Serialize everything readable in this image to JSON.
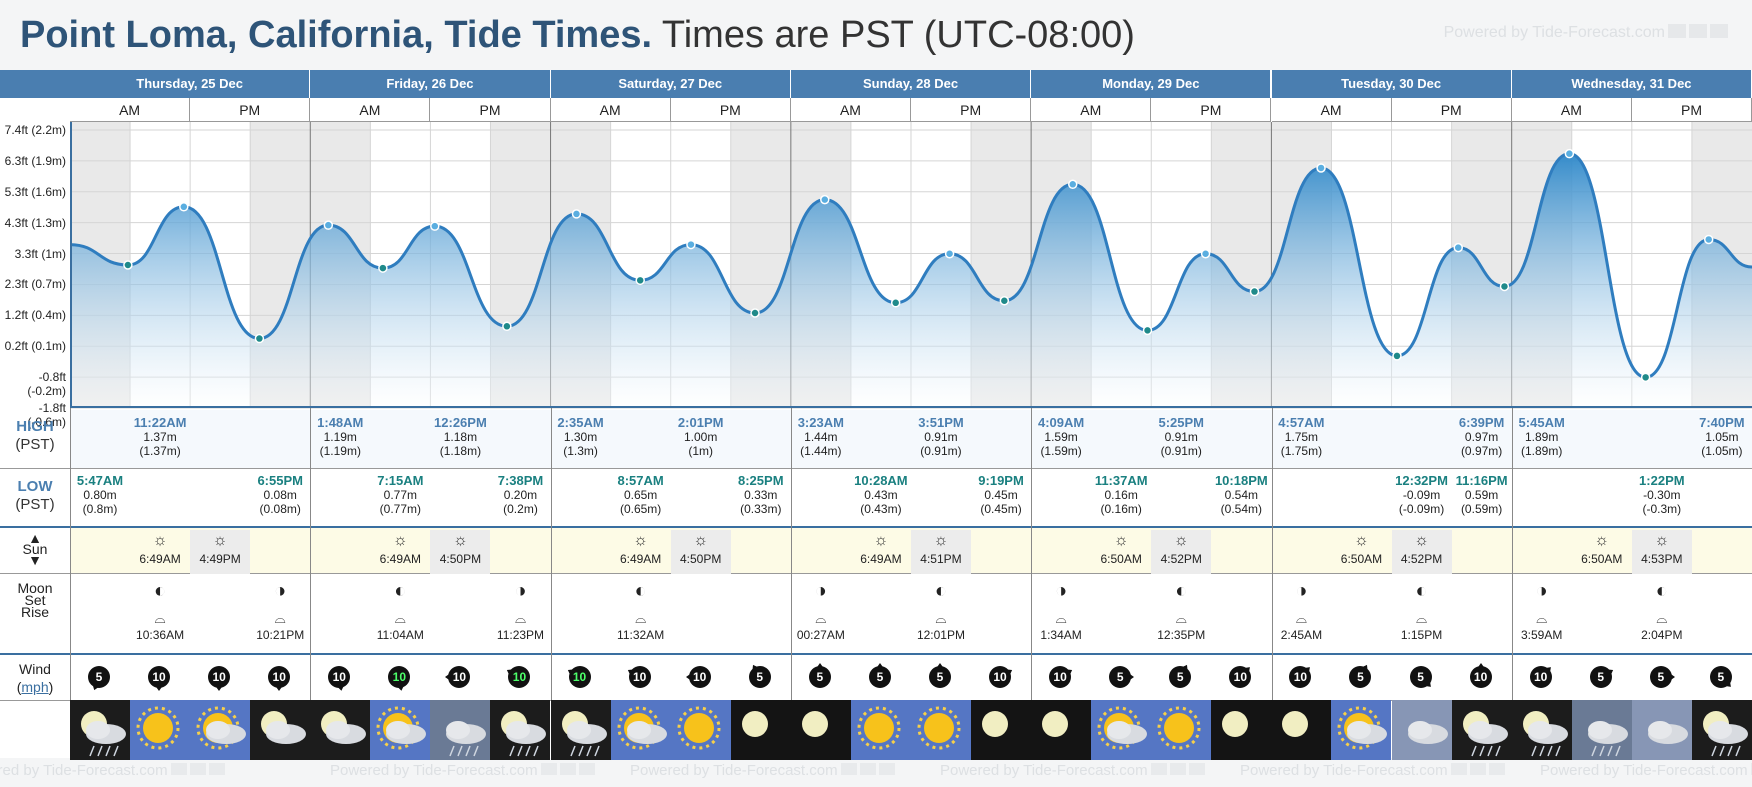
{
  "title": {
    "bold": "Point Loma, California, Tide Times.",
    "normal": "Times are PST (UTC-08:00)"
  },
  "powered_by": "Powered by Tide-Forecast.com",
  "days": [
    {
      "label": "Thursday, 25 Dec"
    },
    {
      "label": "Friday, 26 Dec"
    },
    {
      "label": "Saturday, 27 Dec"
    },
    {
      "label": "Sunday, 28 Dec"
    },
    {
      "label": "Monday, 29 Dec"
    },
    {
      "label": "Tuesday, 30 Dec"
    },
    {
      "label": "Wednesday, 31 Dec"
    }
  ],
  "ampm": {
    "am": "AM",
    "pm": "PM"
  },
  "yaxis_ticks": [
    "7.4ft (2.2m)",
    "6.3ft (1.9m)",
    "5.3ft (1.6m)",
    "4.3ft (1.3m)",
    "3.3ft (1m)",
    "2.3ft (0.7m)",
    "1.2ft (0.4m)",
    "0.2ft (0.1m)",
    "-0.8ft (-0.2m)",
    "-1.8ft (-0.6m)"
  ],
  "row_labels": {
    "high": "HIGH",
    "high_sub": "(PST)",
    "low": "LOW",
    "low_sub": "(PST)",
    "sun": "Sun",
    "moon": "Moon",
    "set": "Set",
    "rise": "Rise",
    "wind": "Wind",
    "mph": "mph"
  },
  "chart_data": {
    "type": "area",
    "title": "",
    "xlabel": "",
    "ylabel": "",
    "ylim": [
      -0.6,
      2.2
    ],
    "unit": "m",
    "points": [
      {
        "day": 0,
        "time": "5:47AM",
        "type": "low",
        "m": 0.8,
        "m_round": "0.8m",
        "label": "0.80m"
      },
      {
        "day": 0,
        "time": "11:22AM",
        "type": "high",
        "m": 1.37,
        "m_round": "1.37m",
        "label": "1.37m"
      },
      {
        "day": 0,
        "time": "6:55PM",
        "type": "low",
        "m": 0.08,
        "m_round": "0.08m",
        "label": "0.08m"
      },
      {
        "day": 1,
        "time": "1:48AM",
        "type": "high",
        "m": 1.19,
        "m_round": "1.19m",
        "label": "1.19m"
      },
      {
        "day": 1,
        "time": "7:15AM",
        "type": "low",
        "m": 0.77,
        "m_round": "0.77m",
        "label": "0.77m"
      },
      {
        "day": 1,
        "time": "12:26PM",
        "type": "high",
        "m": 1.18,
        "m_round": "1.18m",
        "label": "1.18m"
      },
      {
        "day": 1,
        "time": "7:38PM",
        "type": "low",
        "m": 0.2,
        "m_round": "0.2m",
        "label": "0.20m"
      },
      {
        "day": 2,
        "time": "2:35AM",
        "type": "high",
        "m": 1.3,
        "m_round": "1.3m",
        "label": "1.30m"
      },
      {
        "day": 2,
        "time": "8:57AM",
        "type": "low",
        "m": 0.65,
        "m_round": "0.65m",
        "label": "0.65m"
      },
      {
        "day": 2,
        "time": "2:01PM",
        "type": "high",
        "m": 1.0,
        "m_round": "1m",
        "label": "1.00m"
      },
      {
        "day": 2,
        "time": "8:25PM",
        "type": "low",
        "m": 0.33,
        "m_round": "0.33m",
        "label": "0.33m"
      },
      {
        "day": 3,
        "time": "3:23AM",
        "type": "high",
        "m": 1.44,
        "m_round": "1.44m",
        "label": "1.44m"
      },
      {
        "day": 3,
        "time": "10:28AM",
        "type": "low",
        "m": 0.43,
        "m_round": "0.43m",
        "label": "0.43m"
      },
      {
        "day": 3,
        "time": "3:51PM",
        "type": "high",
        "m": 0.91,
        "m_round": "0.91m",
        "label": "0.91m"
      },
      {
        "day": 3,
        "time": "9:19PM",
        "type": "low",
        "m": 0.45,
        "m_round": "0.45m",
        "label": "0.45m"
      },
      {
        "day": 4,
        "time": "4:09AM",
        "type": "high",
        "m": 1.59,
        "m_round": "1.59m",
        "label": "1.59m"
      },
      {
        "day": 4,
        "time": "11:37AM",
        "type": "low",
        "m": 0.16,
        "m_round": "0.16m",
        "label": "0.16m"
      },
      {
        "day": 4,
        "time": "5:25PM",
        "type": "high",
        "m": 0.91,
        "m_round": "0.91m",
        "label": "0.91m"
      },
      {
        "day": 4,
        "time": "10:18PM",
        "type": "low",
        "m": 0.54,
        "m_round": "0.54m",
        "label": "0.54m"
      },
      {
        "day": 5,
        "time": "4:57AM",
        "type": "high",
        "m": 1.75,
        "m_round": "1.75m",
        "label": "1.75m"
      },
      {
        "day": 5,
        "time": "12:32PM",
        "type": "low",
        "m": -0.09,
        "m_round": "-0.09m",
        "label": "-0.09m"
      },
      {
        "day": 5,
        "time": "6:39PM",
        "type": "high",
        "m": 0.97,
        "m_round": "0.97m",
        "label": "0.97m"
      },
      {
        "day": 5,
        "time": "11:16PM",
        "type": "low",
        "m": 0.59,
        "m_round": "0.59m",
        "label": "0.59m"
      },
      {
        "day": 6,
        "time": "5:45AM",
        "type": "high",
        "m": 1.89,
        "m_round": "1.89m",
        "label": "1.89m"
      },
      {
        "day": 6,
        "time": "1:22PM",
        "type": "low",
        "m": -0.3,
        "m_round": "-0.3m",
        "label": "-0.30m"
      },
      {
        "day": 6,
        "time": "7:40PM",
        "type": "high",
        "m": 1.05,
        "m_round": "1.05m",
        "label": "1.05m"
      }
    ]
  },
  "sun": [
    {
      "day": 0,
      "rise": "6:49AM",
      "set": "4:49PM"
    },
    {
      "day": 1,
      "rise": "6:49AM",
      "set": "4:50PM"
    },
    {
      "day": 2,
      "rise": "6:49AM",
      "set": "4:50PM"
    },
    {
      "day": 3,
      "rise": "6:49AM",
      "set": "4:51PM"
    },
    {
      "day": 4,
      "rise": "6:50AM",
      "set": "4:52PM"
    },
    {
      "day": 5,
      "rise": "6:50AM",
      "set": "4:52PM"
    },
    {
      "day": 6,
      "rise": "6:50AM",
      "set": "4:53PM"
    }
  ],
  "moon": [
    {
      "day": 0,
      "time": "10:36AM",
      "kind": "rise",
      "pm": false
    },
    {
      "day": 0,
      "time": "10:21PM",
      "kind": "set",
      "pm": true
    },
    {
      "day": 1,
      "time": "11:04AM",
      "kind": "rise",
      "pm": false
    },
    {
      "day": 1,
      "time": "11:23PM",
      "kind": "set",
      "pm": true
    },
    {
      "day": 2,
      "time": "11:32AM",
      "kind": "rise",
      "pm": false
    },
    {
      "day": 3,
      "time": "00:27AM",
      "kind": "set",
      "pm": false
    },
    {
      "day": 3,
      "time": "12:01PM",
      "kind": "rise",
      "pm": true
    },
    {
      "day": 4,
      "time": "1:34AM",
      "kind": "set",
      "pm": false
    },
    {
      "day": 4,
      "time": "12:35PM",
      "kind": "rise",
      "pm": true
    },
    {
      "day": 5,
      "time": "2:45AM",
      "kind": "set",
      "pm": false
    },
    {
      "day": 5,
      "time": "1:15PM",
      "kind": "rise",
      "pm": true
    },
    {
      "day": 6,
      "time": "3:59AM",
      "kind": "set",
      "pm": false
    },
    {
      "day": 6,
      "time": "2:04PM",
      "kind": "rise",
      "pm": true
    }
  ],
  "wind": [
    {
      "speed": "5",
      "dir": 200,
      "green": false
    },
    {
      "speed": "10",
      "dir": 180,
      "green": false
    },
    {
      "speed": "10",
      "dir": 180,
      "green": false
    },
    {
      "speed": "10",
      "dir": 180,
      "green": false
    },
    {
      "speed": "10",
      "dir": 170,
      "green": false
    },
    {
      "speed": "10",
      "dir": 170,
      "green": true
    },
    {
      "speed": "10",
      "dir": 270,
      "green": false
    },
    {
      "speed": "10",
      "dir": 300,
      "green": true
    },
    {
      "speed": "10",
      "dir": 300,
      "green": true
    },
    {
      "speed": "10",
      "dir": 300,
      "green": false
    },
    {
      "speed": "10",
      "dir": 270,
      "green": false
    },
    {
      "speed": "5",
      "dir": 330,
      "green": false
    },
    {
      "speed": "5",
      "dir": 0,
      "green": false
    },
    {
      "speed": "5",
      "dir": 0,
      "green": false
    },
    {
      "speed": "5",
      "dir": 0,
      "green": false
    },
    {
      "speed": "10",
      "dir": 60,
      "green": false
    },
    {
      "speed": "10",
      "dir": 60,
      "green": false
    },
    {
      "speed": "5",
      "dir": 90,
      "green": false
    },
    {
      "speed": "5",
      "dir": 30,
      "green": false
    },
    {
      "speed": "10",
      "dir": 45,
      "green": false
    },
    {
      "speed": "10",
      "dir": 45,
      "green": false
    },
    {
      "speed": "5",
      "dir": 30,
      "green": false
    },
    {
      "speed": "5",
      "dir": 135,
      "green": false
    },
    {
      "speed": "10",
      "dir": 0,
      "green": false
    },
    {
      "speed": "10",
      "dir": 45,
      "green": false
    },
    {
      "speed": "5",
      "dir": 60,
      "green": false
    },
    {
      "speed": "5",
      "dir": 90,
      "green": false
    },
    {
      "speed": "5",
      "dir": 135,
      "green": false
    }
  ],
  "weather": [
    "night-rain",
    "sunny",
    "partly-cloudy",
    "night-cloudy",
    "night-cloudy",
    "partly-cloudy",
    "rain",
    "night-rain",
    "night-rain",
    "partly-cloudy",
    "sunny",
    "clear-night",
    "clear-night",
    "sunny",
    "sunny",
    "clear-night",
    "clear-night",
    "partly-cloudy",
    "sunny",
    "clear-night",
    "clear-night",
    "partly-cloudy",
    "cloudy",
    "night-rain",
    "night-rain",
    "rain",
    "cloudy",
    "night-rain"
  ]
}
